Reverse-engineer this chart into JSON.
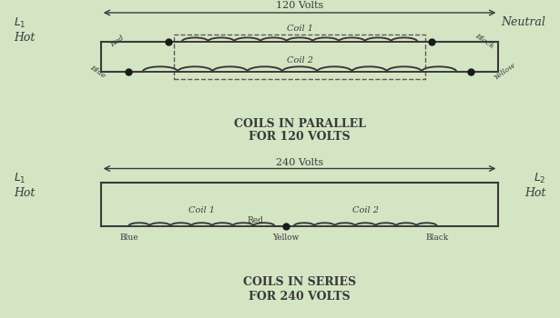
{
  "bg_color": "#d4e5c4",
  "line_color": "#3a3a3a",
  "dot_color": "#1a1a1a",
  "dashed_color": "#5a5a5a",
  "coil_color": "#3a3a3a",
  "title1": "COILS IN PARALLEL\nFOR 120 VOLTS",
  "title2": "COILS IN SERIES\nFOR 240 VOLTS",
  "label_120v": "120 Volts",
  "label_240v": "240 Volts",
  "label_neutral": "Neutral",
  "label_coil1": "Coil 1",
  "label_coil2": "Coil 2",
  "label_red": "Red",
  "label_blue": "Blue",
  "label_black": "Black",
  "label_yellow": "Yellow",
  "wire_lw": 1.5,
  "coil_lw": 1.4
}
